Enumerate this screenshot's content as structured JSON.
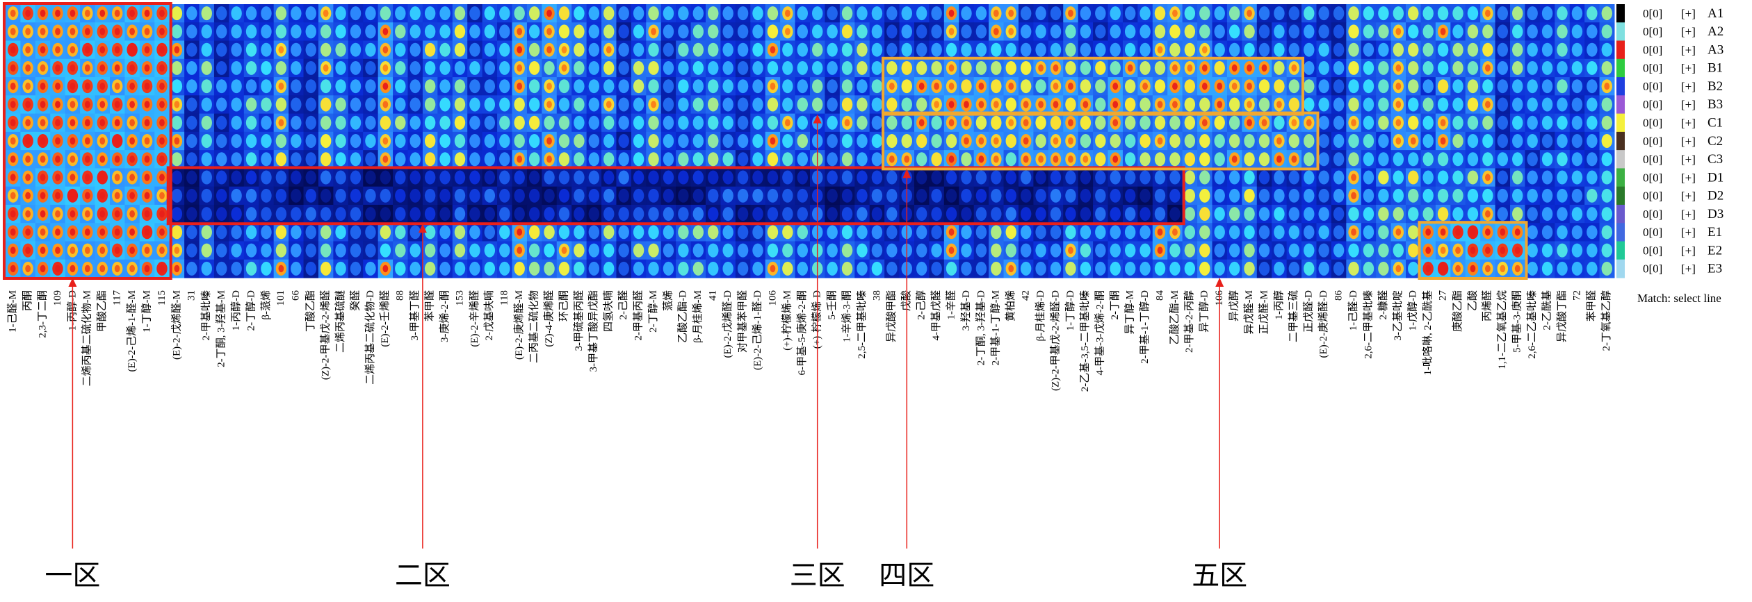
{
  "chart_data": {
    "type": "heatmap",
    "title": "",
    "colorscale": [
      "#00002e",
      "#0a2bd6",
      "#2f8fff",
      "#35e0ff",
      "#f5f03c",
      "#ff9a1a",
      "#e8201a"
    ],
    "rows": [
      {
        "label": "A1",
        "count": "0[0]",
        "toggle": "[+]",
        "color": "#000000"
      },
      {
        "label": "A2",
        "count": "0[0]",
        "toggle": "[+]",
        "color": "#7fe0e0"
      },
      {
        "label": "A3",
        "count": "0[0]",
        "toggle": "[+]",
        "color": "#e8201a"
      },
      {
        "label": "B1",
        "count": "0[0]",
        "toggle": "[+]",
        "color": "#2ecc40"
      },
      {
        "label": "B2",
        "count": "0[0]",
        "toggle": "[+]",
        "color": "#1f3fe0"
      },
      {
        "label": "B3",
        "count": "0[0]",
        "toggle": "[+]",
        "color": "#9b59d6"
      },
      {
        "label": "C1",
        "count": "0[0]",
        "toggle": "[+]",
        "color": "#f5f03c"
      },
      {
        "label": "C2",
        "count": "0[0]",
        "toggle": "[+]",
        "color": "#4a3020"
      },
      {
        "label": "C3",
        "count": "0[0]",
        "toggle": "[+]",
        "color": "#c8c8c8"
      },
      {
        "label": "D1",
        "count": "0[0]",
        "toggle": "[+]",
        "color": "#3cb043"
      },
      {
        "label": "D2",
        "count": "0[0]",
        "toggle": "[+]",
        "color": "#2a7a2a"
      },
      {
        "label": "D3",
        "count": "0[0]",
        "toggle": "[+]",
        "color": "#6a5acd"
      },
      {
        "label": "E1",
        "count": "0[0]",
        "toggle": "[+]",
        "color": "#4169e1"
      },
      {
        "label": "E2",
        "count": "0[0]",
        "toggle": "[+]",
        "color": "#20c997"
      },
      {
        "label": "E3",
        "count": "0[0]",
        "toggle": "[+]",
        "color": "#a0d8ef"
      }
    ],
    "columns": [
      "1-己醛-M",
      "丙酮",
      "2,3-丁二酮",
      "109",
      "1-丙醇-D",
      "二烯丙基二硫化物-M",
      "甲酸乙酯",
      "117",
      "(E)-2-己烯-1-醛-M",
      "1-丁醇-M",
      "115",
      "(E)-2-戊烯醛-M",
      "31",
      "2-甲基吡嗪",
      "2-丁酮, 3-羟基-M",
      "1-丙醇-D",
      "2-丁醇-D",
      "β-蒎烯",
      "101",
      "66",
      "丁酸乙酯",
      "(Z)-2-甲基戊-2-烯醛",
      "二烯丙基硫醚",
      "癸醛",
      "二烯丙基二硫化物-D",
      "(E)-2-壬烯醛",
      "88",
      "3-甲基丁醛",
      "苯甲醛",
      "3-庚烯-2-酮",
      "153",
      "(E)-2-辛烯醛",
      "2-戊基呋喃",
      "118",
      "(E)-2-庚烯醛-M",
      "二丙基二硫化物",
      "(Z)-4-庚烯醛",
      "环己酮",
      "3-甲硫基丙醛",
      "3-甲基丁酸异戊酯",
      "四氢呋喃",
      "2-己醛",
      "2-甲基丙醛",
      "2-丁醇-M",
      "蒎烯",
      "乙酸乙酯-D",
      "β-月桂烯-M",
      "41",
      "(E)-2-戊烯醛-D",
      "对甲基苯甲醛",
      "(E)-2-己烯-1-醛-D",
      "106",
      "(+)-柠檬烯-M",
      "6-甲基-5-庚烯-2-酮",
      "(+)-柠檬烯-D",
      "5-壬酮",
      "1-辛烯-3-酮",
      "2,5-二甲基吡嗪",
      "38",
      "异戊酸甲酯",
      "戊酸",
      "2-己醇",
      "4-甲基戊醛",
      "1-辛醛",
      "3-羟基-D",
      "2-丁酮, 3-羟基-D",
      "2-甲基-1-丁醇-M",
      "黄柏烯",
      "42",
      "β-月桂烯-D",
      "(Z)-2-甲基戊-2-烯醛-D",
      "1-丁醇-D",
      "2-乙基-3,5-二甲基吡嗪",
      "4-甲基-3-戊烯-2-酮",
      "2-丁酮",
      "异丁醇-M",
      "2-甲基-1-丁醇-D",
      "84",
      "乙酸乙酯-M",
      "2-甲基-2-丙醇",
      "异丁醇-D",
      "106",
      "异戊醇",
      "异戊醛-M",
      "正戊醛-M",
      "1-丙醇",
      "二甲基三硫",
      "正戊醛-D",
      "(E)-2-庚烯醛-D",
      "86",
      "1-己醛-D",
      "2,6-二甲基吡嗪",
      "2-糠醛",
      "3-乙基吡啶",
      "1-戊醇-D",
      "1-吡咯啉, 2-乙酰基",
      "27",
      "庚酸乙酯",
      "乙酸",
      "丙烯醛",
      "1,1-二乙氧基乙烷",
      "5-甲基-3-庚酮",
      "2,6-二乙基吡嗪",
      "2-乙酰基",
      "异戊酸丁酯",
      "72",
      "苯甲醛",
      "2-丁氧基乙醇"
    ],
    "zones": [
      {
        "label": "一区",
        "column_start": 0,
        "column_end": 10,
        "row_start": 0,
        "row_end": 14,
        "color": "#e8201a"
      },
      {
        "label": "二区",
        "column_start": 11,
        "column_end": 78,
        "row_start": 9,
        "row_end": 11,
        "color": "#e8201a"
      },
      {
        "label": "三区",
        "column_start": 59,
        "column_end": 86,
        "row_start": 3,
        "row_end": 5,
        "color": "#f0a830"
      },
      {
        "label": "四区",
        "column_start": 59,
        "column_end": 87,
        "row_start": 6,
        "row_end": 8,
        "color": "#f0a830"
      },
      {
        "label": "五区",
        "column_start": 95,
        "column_end": 101,
        "row_start": 12,
        "row_end": 14,
        "color": "#f0a830"
      }
    ],
    "zone_labels": [
      "一区",
      "二区",
      "三区",
      "四区",
      "五区"
    ],
    "match_label": "Match: select line"
  }
}
